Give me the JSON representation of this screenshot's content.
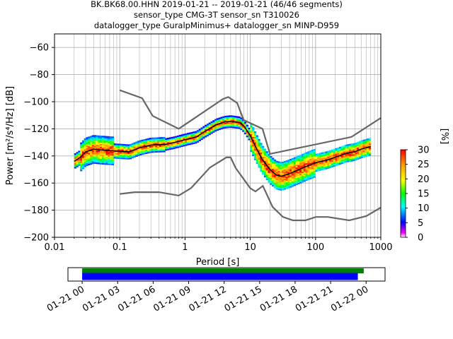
{
  "chart_data": [
    {
      "type": "heatmap",
      "title_lines": [
        "BK.BK68.00.HHN   2019-01-21 -- 2019-01-21  (46/46 segments)",
        "sensor_type CMG-3T sensor_sn T310026",
        "datalogger_type GuralpMinimus+ datalogger_sn MINP-D959"
      ],
      "xlabel": "Period [s]",
      "ylabel": "Power [m²/s⁴/Hz] [dB]",
      "xscale": "log",
      "xlim": [
        0.01,
        1000
      ],
      "ylim": [
        -200,
        -50
      ],
      "x_ticks": [
        0.01,
        0.1,
        1,
        10,
        100,
        1000
      ],
      "x_tick_labels": [
        "0.01",
        "0.1",
        "1",
        "10",
        "100",
        "1000"
      ],
      "y_ticks": [
        -200,
        -180,
        -160,
        -140,
        -120,
        -100,
        -80,
        -60
      ],
      "y_tick_labels": [
        "−200",
        "−180",
        "−160",
        "−140",
        "−120",
        "−100",
        "−80",
        "−60"
      ],
      "grid": true,
      "noise_models": {
        "high": {
          "period": [
            0.1,
            0.22,
            0.32,
            0.8,
            3.8,
            4.6,
            6.3,
            7.9,
            15.4,
            20,
            354.8,
            1000
          ],
          "power": [
            -91.5,
            -97.4,
            -110.5,
            -120,
            -98,
            -96.5,
            -101,
            -113.5,
            -120,
            -138.5,
            -126,
            -112
          ]
        },
        "low": {
          "period": [
            0.1,
            0.17,
            0.4,
            0.8,
            1.24,
            2.4,
            4.3,
            5.0,
            6.0,
            10.0,
            12.0,
            15.6,
            21.9,
            31.6,
            45.0,
            70.0,
            101.0,
            154.0,
            328.0,
            600.0,
            1000.0
          ],
          "power": [
            -168,
            -166.7,
            -166.7,
            -169.2,
            -163.7,
            -148.6,
            -141.1,
            -141.1,
            -149.0,
            -163.8,
            -166.2,
            -162.1,
            -177.5,
            -185.0,
            -187.5,
            -187.5,
            -185.0,
            -185.0,
            -187.5,
            -184.4,
            -178
          ]
        }
      },
      "mean_psd": {
        "period": [
          0.02,
          0.025,
          0.03,
          0.04,
          0.05,
          0.07,
          0.1,
          0.14,
          0.2,
          0.3,
          0.5,
          0.7,
          1,
          1.5,
          2,
          3,
          4,
          5,
          6,
          7,
          8,
          10,
          12,
          15,
          20,
          25,
          30,
          40,
          50,
          70,
          100,
          150,
          200,
          300,
          400,
          500,
          700
        ],
        "power": [
          -144,
          -141,
          -137,
          -135,
          -135.5,
          -136,
          -136.5,
          -137,
          -134,
          -132,
          -131.5,
          -130,
          -128,
          -126,
          -122,
          -117,
          -115,
          -114.5,
          -115,
          -115.5,
          -118,
          -125,
          -133,
          -142,
          -150,
          -154,
          -155,
          -153,
          -151,
          -148,
          -145,
          -143,
          -141,
          -138,
          -137,
          -135,
          -133
        ]
      },
      "colorbar": {
        "label": "[%]",
        "ticks": [
          0,
          5,
          10,
          15,
          20,
          25,
          30
        ],
        "range": [
          0,
          30
        ]
      }
    },
    {
      "type": "timeline",
      "ticks": [
        "01-21 00",
        "01-21 03",
        "01-21 06",
        "01-21 09",
        "01-21 12",
        "01-21 15",
        "01-21 18",
        "01-21 21",
        "01-22 00"
      ],
      "range_hours": [
        -1.2,
        25.6
      ],
      "bars": [
        {
          "start": 0.0,
          "end": 23.8,
          "color": "#008000"
        },
        {
          "start": 0.0,
          "end": 23.3,
          "color": "#0000ff"
        }
      ]
    }
  ]
}
